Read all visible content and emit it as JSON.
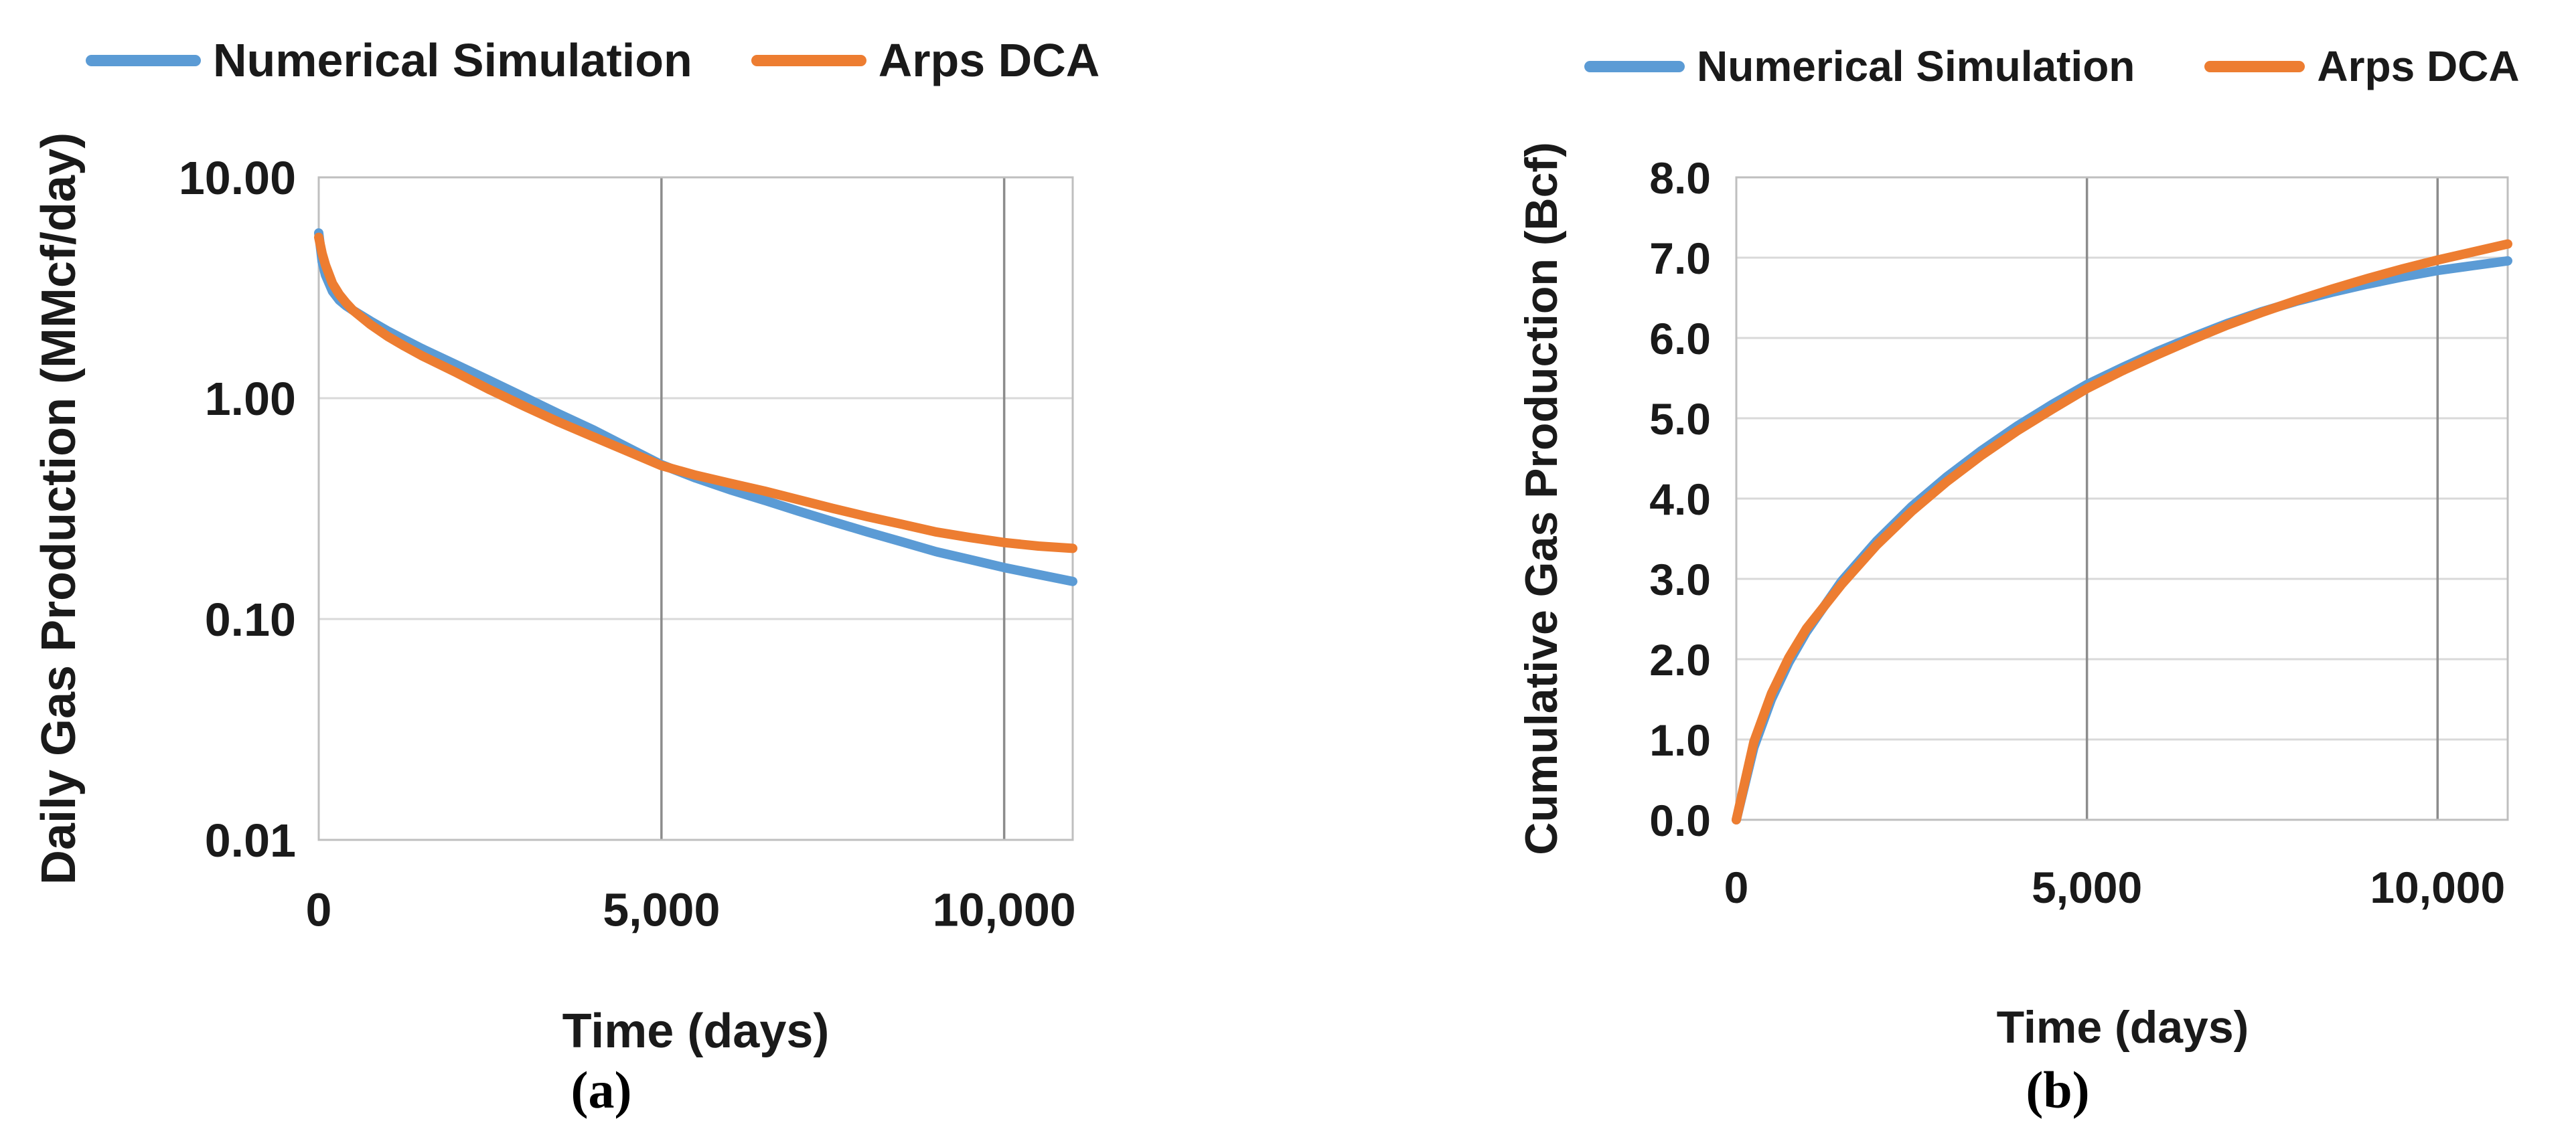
{
  "figure": {
    "captions": {
      "a": "(a)",
      "b": "(b)"
    }
  },
  "chart_data": [
    {
      "type": "line",
      "panel": "a",
      "title": "",
      "xlabel": "Time (days)",
      "ylabel": "Daily Gas Production (MMcf/day)",
      "legend_position": "top",
      "grid": true,
      "x_axis": {
        "min": 0,
        "max": 11000,
        "ticks": [
          {
            "value": 0,
            "label": "0"
          },
          {
            "value": 5000,
            "label": "5,000"
          },
          {
            "value": 10000,
            "label": "10,000"
          }
        ],
        "gridlines": [
          5000,
          10000
        ]
      },
      "y_axis": {
        "scale": "log",
        "min": 0.01,
        "max": 10,
        "ticks": [
          {
            "value": 10,
            "label": "10.00"
          },
          {
            "value": 1,
            "label": "1.00"
          },
          {
            "value": 0.1,
            "label": "0.10"
          },
          {
            "value": 0.01,
            "label": "0.01"
          }
        ],
        "gridlines": [
          1,
          0.1
        ]
      },
      "series": [
        {
          "name": "Numerical Simulation",
          "color": "#5B9BD5",
          "x": [
            0,
            50,
            100,
            200,
            300,
            400,
            500,
            750,
            1000,
            1250,
            1500,
            2000,
            2500,
            3000,
            3500,
            4000,
            4500,
            5000,
            5500,
            6000,
            6500,
            7000,
            7500,
            8000,
            8500,
            9000,
            9500,
            10000,
            10500,
            11000
          ],
          "y": [
            5.6,
            4.15,
            3.6,
            3.05,
            2.78,
            2.62,
            2.5,
            2.24,
            2.02,
            1.84,
            1.68,
            1.42,
            1.2,
            1.01,
            0.85,
            0.72,
            0.6,
            0.5,
            0.435,
            0.385,
            0.345,
            0.308,
            0.276,
            0.248,
            0.224,
            0.202,
            0.186,
            0.171,
            0.159,
            0.148
          ]
        },
        {
          "name": "Arps DCA",
          "color": "#ED7D31",
          "x": [
            0,
            50,
            100,
            200,
            300,
            400,
            500,
            750,
            1000,
            1250,
            1500,
            2000,
            2500,
            3000,
            3500,
            4000,
            4500,
            5000,
            5500,
            6000,
            6500,
            7000,
            7500,
            8000,
            8500,
            9000,
            9500,
            10000,
            10500,
            11000
          ],
          "y": [
            5.35,
            4.52,
            4.0,
            3.31,
            2.95,
            2.7,
            2.5,
            2.16,
            1.91,
            1.72,
            1.56,
            1.31,
            1.09,
            0.92,
            0.78,
            0.67,
            0.576,
            0.495,
            0.448,
            0.412,
            0.38,
            0.347,
            0.317,
            0.291,
            0.269,
            0.248,
            0.234,
            0.222,
            0.214,
            0.209
          ]
        }
      ]
    },
    {
      "type": "line",
      "panel": "b",
      "title": "",
      "xlabel": "Time (days)",
      "ylabel": "Cumulative Gas Production (Bcf)",
      "legend_position": "top",
      "grid": true,
      "x_axis": {
        "min": 0,
        "max": 11000,
        "ticks": [
          {
            "value": 0,
            "label": "0"
          },
          {
            "value": 5000,
            "label": "5,000"
          },
          {
            "value": 10000,
            "label": "10,000"
          }
        ],
        "gridlines": [
          5000,
          10000
        ]
      },
      "y_axis": {
        "scale": "linear",
        "min": 0,
        "max": 8,
        "ticks": [
          {
            "value": 8,
            "label": "8.0"
          },
          {
            "value": 7,
            "label": "7.0"
          },
          {
            "value": 6,
            "label": "6.0"
          },
          {
            "value": 5,
            "label": "5.0"
          },
          {
            "value": 4,
            "label": "4.0"
          },
          {
            "value": 3,
            "label": "3.0"
          },
          {
            "value": 2,
            "label": "2.0"
          },
          {
            "value": 1,
            "label": "1.0"
          },
          {
            "value": 0,
            "label": "0.0"
          }
        ],
        "gridlines": [
          1,
          2,
          3,
          4,
          5,
          6,
          7
        ]
      },
      "series": [
        {
          "name": "Numerical Simulation",
          "color": "#5B9BD5",
          "x": [
            0,
            250,
            500,
            750,
            1000,
            1500,
            2000,
            2500,
            3000,
            3500,
            4000,
            4500,
            5000,
            5500,
            6000,
            6500,
            7000,
            7500,
            8000,
            8500,
            9000,
            9500,
            10000,
            10500,
            11000
          ],
          "y": [
            0,
            0.9,
            1.5,
            1.96,
            2.34,
            2.97,
            3.47,
            3.9,
            4.27,
            4.6,
            4.9,
            5.17,
            5.42,
            5.63,
            5.83,
            6.01,
            6.18,
            6.33,
            6.46,
            6.57,
            6.67,
            6.76,
            6.84,
            6.9,
            6.96
          ]
        },
        {
          "name": "Arps DCA",
          "color": "#ED7D31",
          "x": [
            0,
            250,
            500,
            750,
            1000,
            1500,
            2000,
            2500,
            3000,
            3500,
            4000,
            4500,
            5000,
            5500,
            6000,
            6500,
            7000,
            7500,
            8000,
            8500,
            9000,
            9500,
            10000,
            10500,
            11000
          ],
          "y": [
            0,
            0.97,
            1.57,
            2.02,
            2.38,
            2.93,
            3.42,
            3.84,
            4.21,
            4.54,
            4.84,
            5.11,
            5.37,
            5.59,
            5.79,
            5.98,
            6.16,
            6.32,
            6.47,
            6.61,
            6.74,
            6.86,
            6.97,
            7.07,
            7.17
          ]
        }
      ]
    }
  ]
}
